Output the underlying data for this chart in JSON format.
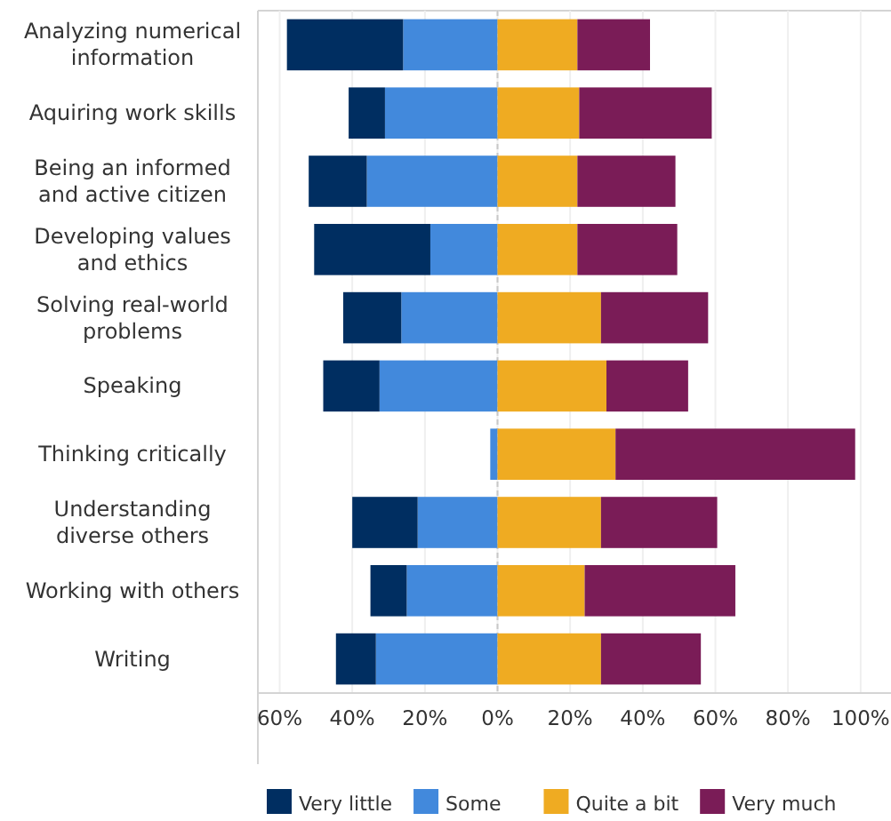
{
  "chart_data": {
    "type": "bar",
    "orientation": "horizontal",
    "stacked": true,
    "categories": [
      "Analyzing numerical information",
      "Aquiring work skills",
      "Being an informed and active citizen",
      "Developing values and ethics",
      "Solving real-world problems",
      "Speaking",
      "Thinking critically",
      "Understanding diverse others",
      "Working with others",
      "Writing"
    ],
    "series": [
      {
        "name": "Some",
        "color": "#4289dc",
        "values": [
          -26,
          -31,
          -36,
          -18.5,
          -26.5,
          -32.5,
          -2,
          -22,
          -25,
          -33.5
        ]
      },
      {
        "name": "Very little",
        "color": "#002e61",
        "values": [
          -32,
          -10,
          -16,
          -32,
          -16,
          -15.5,
          0,
          -18,
          -10,
          -11
        ]
      },
      {
        "name": "Quite a bit",
        "color": "#efab22",
        "values": [
          22,
          22.5,
          22,
          22,
          28.5,
          30,
          32.5,
          28.5,
          24,
          28.5
        ]
      },
      {
        "name": "Very much",
        "color": "#7a1c57",
        "values": [
          20,
          36.5,
          27,
          27.5,
          29.5,
          22.5,
          66,
          32,
          41.5,
          27.5
        ]
      }
    ],
    "xlim": [
      -66,
      102
    ],
    "xticks": [
      {
        "value": -60,
        "label": "60%"
      },
      {
        "value": -40,
        "label": "40%"
      },
      {
        "value": -20,
        "label": "20%"
      },
      {
        "value": 0,
        "label": "0%"
      },
      {
        "value": 20,
        "label": "20%"
      },
      {
        "value": 40,
        "label": "40%"
      },
      {
        "value": 60,
        "label": "60%"
      },
      {
        "value": 80,
        "label": "80%"
      },
      {
        "value": 100,
        "label": "100%"
      }
    ],
    "ref_lines": [
      {
        "axis": "x",
        "value": 0,
        "color": "#c8c8c8",
        "line_style": "dashed"
      }
    ],
    "grid": "x",
    "legend": "bottom"
  }
}
